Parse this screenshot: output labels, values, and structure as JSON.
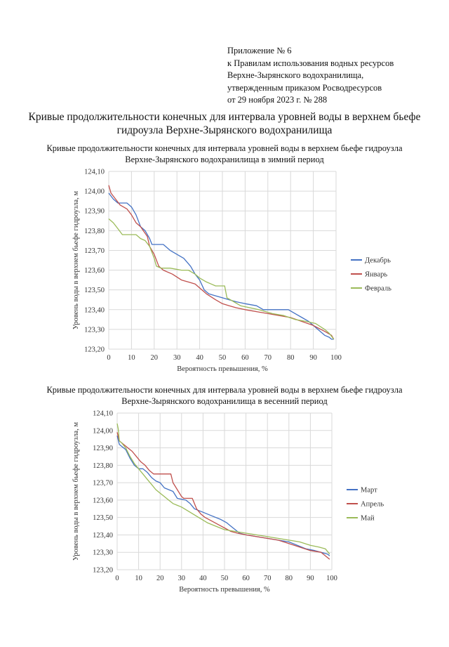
{
  "annex": {
    "line1": "Приложение № 6",
    "line2": "к Правилам использования водных ресурсов",
    "line3": "Верхне-Зырянского водохранилища,",
    "line4": "утвержденным приказом Росводресурсов",
    "line5": "от 29 ноября 2023 г. № 288"
  },
  "doc_title": {
    "line1": "Кривые продолжительности конечных для интервала уровней воды в верхнем бьефе",
    "line2": "гидроузла Верхне-Зырянского водохранилища"
  },
  "chart_data": [
    {
      "type": "line",
      "title_line1": "Кривые продолжительности конечных для интервала уровней воды в верхнем бьефе гидроузла",
      "title_line2": "Верхне-Зырянского водохранилища в зимний период",
      "xlabel": "Вероятность превышения, %",
      "ylabel": "Уровень воды в верхнем бьефе гидроузла, м",
      "xlim": [
        0,
        100
      ],
      "ylim": [
        123.2,
        124.1
      ],
      "x_ticks": [
        "0",
        "10",
        "20",
        "30",
        "40",
        "50",
        "60",
        "70",
        "80",
        "90",
        "100"
      ],
      "y_ticks": [
        "123,20",
        "123,30",
        "123,40",
        "123,50",
        "123,60",
        "123,70",
        "123,80",
        "123,90",
        "124,00",
        "124,10"
      ],
      "legend_position": "right",
      "series": [
        {
          "name": "Декабрь",
          "color": "#4472c4",
          "points": [
            [
              0,
              123.99
            ],
            [
              2,
              123.96
            ],
            [
              4,
              123.94
            ],
            [
              8,
              123.94
            ],
            [
              10,
              123.92
            ],
            [
              12,
              123.88
            ],
            [
              14,
              123.82
            ],
            [
              16,
              123.8
            ],
            [
              18,
              123.76
            ],
            [
              19,
              123.73
            ],
            [
              24,
              123.73
            ],
            [
              27,
              123.7
            ],
            [
              30,
              123.68
            ],
            [
              33,
              123.66
            ],
            [
              36,
              123.62
            ],
            [
              38,
              123.58
            ],
            [
              40,
              123.55
            ],
            [
              42,
              123.5
            ],
            [
              44,
              123.48
            ],
            [
              47,
              123.47
            ],
            [
              50,
              123.46
            ],
            [
              53,
              123.45
            ],
            [
              56,
              123.44
            ],
            [
              60,
              123.43
            ],
            [
              65,
              123.42
            ],
            [
              68,
              123.4
            ],
            [
              76,
              123.4
            ],
            [
              79,
              123.4
            ],
            [
              82,
              123.38
            ],
            [
              85,
              123.36
            ],
            [
              88,
              123.34
            ],
            [
              92,
              123.3
            ],
            [
              95,
              123.27
            ],
            [
              97,
              123.26
            ],
            [
              98,
              123.25
            ],
            [
              99,
              123.25
            ]
          ]
        },
        {
          "name": "Январь",
          "color": "#c0504d",
          "points": [
            [
              0,
              124.03
            ],
            [
              1,
              123.99
            ],
            [
              3,
              123.96
            ],
            [
              5,
              123.93
            ],
            [
              8,
              123.91
            ],
            [
              10,
              123.88
            ],
            [
              12,
              123.84
            ],
            [
              14,
              123.82
            ],
            [
              17,
              123.77
            ],
            [
              18,
              123.72
            ],
            [
              20,
              123.68
            ],
            [
              22,
              123.62
            ],
            [
              24,
              123.6
            ],
            [
              28,
              123.58
            ],
            [
              32,
              123.55
            ],
            [
              35,
              123.54
            ],
            [
              38,
              123.53
            ],
            [
              40,
              123.51
            ],
            [
              43,
              123.48
            ],
            [
              47,
              123.45
            ],
            [
              50,
              123.43
            ],
            [
              53,
              123.42
            ],
            [
              56,
              123.41
            ],
            [
              60,
              123.4
            ],
            [
              65,
              123.39
            ],
            [
              70,
              123.38
            ],
            [
              75,
              123.37
            ],
            [
              80,
              123.36
            ],
            [
              85,
              123.34
            ],
            [
              90,
              123.32
            ],
            [
              95,
              123.29
            ],
            [
              98,
              123.27
            ],
            [
              99,
              123.25
            ]
          ]
        },
        {
          "name": "Февраль",
          "color": "#9bbb59",
          "points": [
            [
              0,
              123.86
            ],
            [
              2,
              123.84
            ],
            [
              4,
              123.81
            ],
            [
              6,
              123.78
            ],
            [
              12,
              123.78
            ],
            [
              14,
              123.76
            ],
            [
              16,
              123.75
            ],
            [
              18,
              123.72
            ],
            [
              20,
              123.66
            ],
            [
              21,
              123.62
            ],
            [
              23,
              123.61
            ],
            [
              27,
              123.61
            ],
            [
              32,
              123.6
            ],
            [
              35,
              123.6
            ],
            [
              38,
              123.58
            ],
            [
              40,
              123.56
            ],
            [
              43,
              123.54
            ],
            [
              45,
              123.53
            ],
            [
              47,
              123.52
            ],
            [
              51,
              123.52
            ],
            [
              52,
              123.46
            ],
            [
              55,
              123.44
            ],
            [
              58,
              123.42
            ],
            [
              62,
              123.41
            ],
            [
              66,
              123.4
            ],
            [
              72,
              123.38
            ],
            [
              77,
              123.37
            ],
            [
              82,
              123.35
            ],
            [
              87,
              123.34
            ],
            [
              91,
              123.33
            ],
            [
              95,
              123.3
            ],
            [
              97,
              123.28
            ],
            [
              99,
              123.25
            ]
          ]
        }
      ]
    },
    {
      "type": "line",
      "title_line1": "Кривые продолжительности конечных для интервала уровней воды в верхнем бьефе гидроузла",
      "title_line2": "Верхне-Зырянского водохранилища в весенний период",
      "xlabel": "Вероятность превышения, %",
      "ylabel": "Уровень воды в верхнем бьефе гидроузла, м",
      "xlim": [
        0,
        100
      ],
      "ylim": [
        123.2,
        124.1
      ],
      "x_ticks": [
        "0",
        "10",
        "20",
        "30",
        "40",
        "50",
        "60",
        "70",
        "80",
        "90",
        "100"
      ],
      "y_ticks": [
        "123,20",
        "123,30",
        "123,40",
        "123,50",
        "123,60",
        "123,70",
        "123,80",
        "123,90",
        "124,00",
        "124,10"
      ],
      "legend_position": "right",
      "series": [
        {
          "name": "Март",
          "color": "#4472c4",
          "points": [
            [
              0,
              123.97
            ],
            [
              1,
              123.92
            ],
            [
              2,
              123.91
            ],
            [
              4,
              123.89
            ],
            [
              6,
              123.84
            ],
            [
              8,
              123.8
            ],
            [
              10,
              123.78
            ],
            [
              12,
              123.78
            ],
            [
              14,
              123.76
            ],
            [
              16,
              123.73
            ],
            [
              18,
              123.71
            ],
            [
              20,
              123.7
            ],
            [
              22,
              123.67
            ],
            [
              24,
              123.66
            ],
            [
              26,
              123.65
            ],
            [
              28,
              123.61
            ],
            [
              32,
              123.6
            ],
            [
              34,
              123.58
            ],
            [
              36,
              123.55
            ],
            [
              40,
              123.53
            ],
            [
              44,
              123.51
            ],
            [
              48,
              123.49
            ],
            [
              51,
              123.47
            ],
            [
              53,
              123.45
            ],
            [
              55,
              123.43
            ],
            [
              57,
              123.41
            ],
            [
              60,
              123.4
            ],
            [
              65,
              123.39
            ],
            [
              70,
              123.38
            ],
            [
              75,
              123.37
            ],
            [
              80,
              123.36
            ],
            [
              84,
              123.34
            ],
            [
              88,
              123.32
            ],
            [
              92,
              123.31
            ],
            [
              95,
              123.3
            ],
            [
              98,
              123.29
            ],
            [
              99,
              123.28
            ]
          ]
        },
        {
          "name": "Апрель",
          "color": "#c0504d",
          "points": [
            [
              0,
              123.99
            ],
            [
              1,
              123.94
            ],
            [
              3,
              123.92
            ],
            [
              5,
              123.9
            ],
            [
              7,
              123.88
            ],
            [
              9,
              123.85
            ],
            [
              11,
              123.82
            ],
            [
              13,
              123.8
            ],
            [
              15,
              123.77
            ],
            [
              17,
              123.75
            ],
            [
              25,
              123.75
            ],
            [
              26,
              123.7
            ],
            [
              28,
              123.66
            ],
            [
              30,
              123.62
            ],
            [
              31,
              123.61
            ],
            [
              35,
              123.61
            ],
            [
              37,
              123.55
            ],
            [
              39,
              123.52
            ],
            [
              41,
              123.5
            ],
            [
              44,
              123.48
            ],
            [
              47,
              123.46
            ],
            [
              50,
              123.44
            ],
            [
              53,
              123.42
            ],
            [
              56,
              123.41
            ],
            [
              60,
              123.4
            ],
            [
              65,
              123.39
            ],
            [
              70,
              123.38
            ],
            [
              75,
              123.37
            ],
            [
              80,
              123.35
            ],
            [
              85,
              123.33
            ],
            [
              90,
              123.31
            ],
            [
              95,
              123.3
            ],
            [
              97,
              123.28
            ],
            [
              98,
              123.27
            ],
            [
              99,
              123.26
            ]
          ]
        },
        {
          "name": "Май",
          "color": "#9bbb59",
          "points": [
            [
              0,
              124.04
            ],
            [
              0.5,
              124.01
            ],
            [
              1,
              123.94
            ],
            [
              2,
              123.93
            ],
            [
              4,
              123.9
            ],
            [
              6,
              123.85
            ],
            [
              8,
              123.81
            ],
            [
              10,
              123.78
            ],
            [
              12,
              123.75
            ],
            [
              14,
              123.72
            ],
            [
              16,
              123.69
            ],
            [
              18,
              123.66
            ],
            [
              20,
              123.64
            ],
            [
              22,
              123.62
            ],
            [
              24,
              123.6
            ],
            [
              26,
              123.58
            ],
            [
              30,
              123.56
            ],
            [
              34,
              123.53
            ],
            [
              38,
              123.5
            ],
            [
              42,
              123.47
            ],
            [
              46,
              123.45
            ],
            [
              50,
              123.43
            ],
            [
              55,
              123.42
            ],
            [
              60,
              123.41
            ],
            [
              65,
              123.4
            ],
            [
              70,
              123.39
            ],
            [
              75,
              123.38
            ],
            [
              80,
              123.37
            ],
            [
              85,
              123.36
            ],
            [
              90,
              123.34
            ],
            [
              94,
              123.33
            ],
            [
              97,
              123.32
            ],
            [
              99,
              123.29
            ]
          ]
        }
      ]
    }
  ]
}
